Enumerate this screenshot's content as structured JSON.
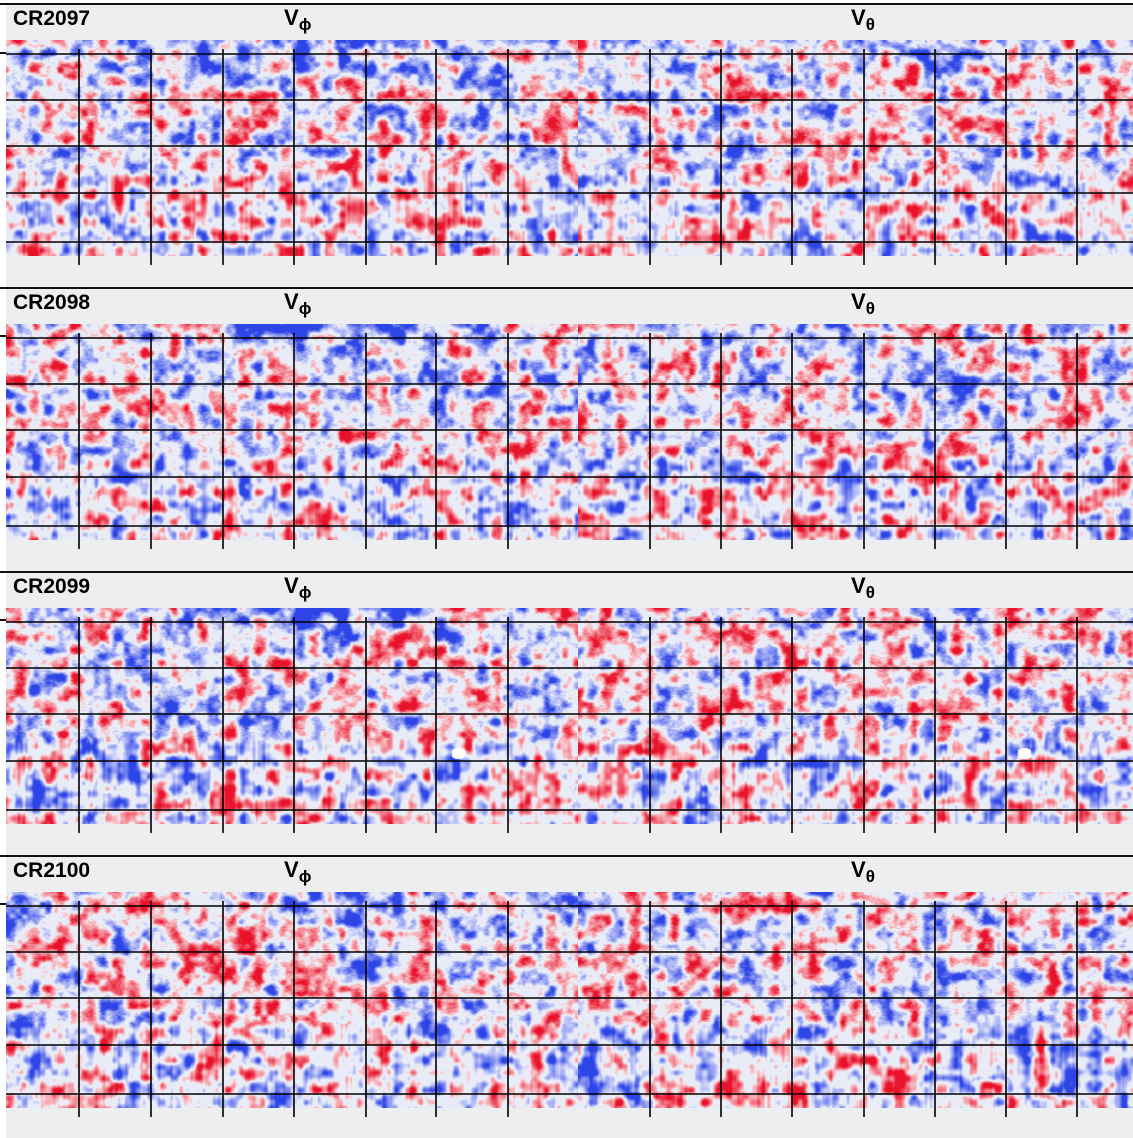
{
  "figure": {
    "rows": [
      {
        "label": "CR2097",
        "left_title": "V",
        "left_sub": "ϕ",
        "right_title": "V",
        "right_sub": "θ",
        "hole": false
      },
      {
        "label": "CR2098",
        "left_title": "V",
        "left_sub": "ϕ",
        "right_title": "V",
        "right_sub": "θ",
        "hole": false
      },
      {
        "label": "CR2099",
        "left_title": "V",
        "left_sub": "ϕ",
        "right_title": "V",
        "right_sub": "θ",
        "hole": true
      },
      {
        "label": "CR2100",
        "left_title": "V",
        "left_sub": "ϕ",
        "right_title": "V",
        "right_sub": "θ",
        "hole": false
      }
    ],
    "colors": {
      "positive": "#e8132b",
      "negative": "#2d45e6",
      "zero": "#ffffff",
      "background": "#eceef0",
      "grid": "#000000"
    }
  }
}
